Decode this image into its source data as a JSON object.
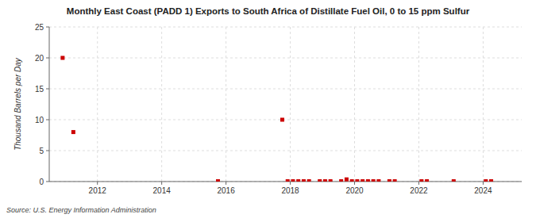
{
  "chart_data": {
    "type": "scatter",
    "title": "Monthly East Coast (PADD 1) Exports to South Africa of Distillate Fuel Oil, 0 to 15 ppm Sulfur",
    "ylabel": "Thousand Barrels per Day",
    "source": "Source: U.S. Energy Information Administration",
    "color": "#cc0000",
    "marker": "square",
    "grid": true,
    "xlim": [
      2010.5,
      2025.2
    ],
    "ylim": [
      0,
      25
    ],
    "xticks": [
      2012,
      2014,
      2016,
      2018,
      2020,
      2022,
      2024
    ],
    "yticks": [
      0,
      5,
      10,
      15,
      20,
      25
    ],
    "x": [
      2010.917,
      2011.25,
      2015.75,
      2017.75,
      2017.917,
      2018.083,
      2018.25,
      2018.417,
      2018.583,
      2018.917,
      2019.083,
      2019.25,
      2019.583,
      2019.75,
      2019.917,
      2020.083,
      2020.25,
      2020.417,
      2020.583,
      2020.75,
      2021.083,
      2021.25,
      2022.083,
      2022.25,
      2023.083,
      2024.083,
      2024.25
    ],
    "values": [
      20.0,
      8.0,
      0.05,
      10.0,
      0.05,
      0.05,
      0.05,
      0.05,
      0.05,
      0.05,
      0.05,
      0.05,
      0.05,
      0.35,
      0.05,
      0.05,
      0.05,
      0.05,
      0.05,
      0.05,
      0.05,
      0.05,
      0.05,
      0.05,
      0.05,
      0.05,
      0.05
    ]
  }
}
